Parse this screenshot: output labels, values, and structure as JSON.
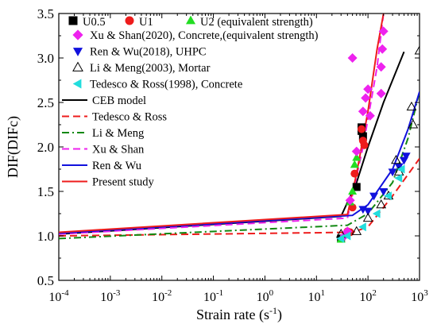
{
  "chart_data": {
    "type": "scatter",
    "xlabel_main": "Strain rate",
    "xlabel_unit_open": "(s",
    "xlabel_unit_exp": "-1",
    "xlabel_unit_close": ")",
    "ylabel": "DIF(DIFc)",
    "x_scale": "log",
    "xlim": [
      0.0001,
      1000
    ],
    "ylim": [
      0.5,
      3.5
    ],
    "x_ticks": [
      {
        "value": 0.0001,
        "base": "10",
        "exp": "-4"
      },
      {
        "value": 0.001,
        "base": "10",
        "exp": "-3"
      },
      {
        "value": 0.01,
        "base": "10",
        "exp": "-2"
      },
      {
        "value": 0.1,
        "base": "10",
        "exp": "-1"
      },
      {
        "value": 1,
        "base": "10",
        "exp": "0"
      },
      {
        "value": 10,
        "base": "10",
        "exp": "1"
      },
      {
        "value": 100,
        "base": "10",
        "exp": "2"
      },
      {
        "value": 1000,
        "base": "10",
        "exp": "3"
      }
    ],
    "y_ticks": [
      "0.5",
      "1.0",
      "1.5",
      "2.0",
      "2.5",
      "3.0",
      "3.5"
    ],
    "grid": false,
    "legend_position": "top-left",
    "legend_top_row": [
      "U0.5",
      "U1",
      "U2  (equivalent strength)"
    ],
    "scatter_series": [
      {
        "name": "U0.5",
        "marker": "square",
        "color": "#000000",
        "points": [
          [
            30,
            0.97
          ],
          [
            60,
            1.55
          ],
          [
            75,
            2.22
          ],
          [
            80,
            2.12
          ],
          [
            75,
            2.18
          ]
        ]
      },
      {
        "name": "U1",
        "marker": "circle",
        "color": "#ee1c1c",
        "points": [
          [
            40,
            1.05
          ],
          [
            45,
            1.04
          ],
          [
            50,
            1.32
          ],
          [
            55,
            1.7
          ],
          [
            75,
            2.2
          ],
          [
            80,
            2.07
          ],
          [
            85,
            2.02
          ]
        ]
      },
      {
        "name": "U2  (equivalent strength)",
        "marker": "triangle-up",
        "color": "#22dd22",
        "points": [
          [
            30,
            0.96
          ],
          [
            45,
            1.38
          ],
          [
            50,
            1.5
          ],
          [
            55,
            1.8
          ],
          [
            60,
            1.88
          ]
        ]
      },
      {
        "name": "Xu & Shan(2020), Concrete,(equivalent strength)",
        "marker": "diamond",
        "color": "#ee22ee",
        "points": [
          [
            35,
            1.0
          ],
          [
            40,
            1.05
          ],
          [
            45,
            1.4
          ],
          [
            50,
            3.0
          ],
          [
            60,
            1.95
          ],
          [
            80,
            2.4
          ],
          [
            90,
            2.55
          ],
          [
            100,
            2.65
          ],
          [
            110,
            2.35
          ],
          [
            180,
            2.9
          ],
          [
            190,
            3.1
          ],
          [
            200,
            3.3
          ],
          [
            180,
            2.6
          ]
        ]
      },
      {
        "name": "Ren & Wu(2018), UHPC",
        "marker": "triangle-down",
        "color": "#1111dd",
        "points": [
          [
            80,
            1.3
          ],
          [
            100,
            1.28
          ],
          [
            130,
            1.45
          ],
          [
            200,
            1.5
          ],
          [
            300,
            1.72
          ],
          [
            400,
            1.78
          ],
          [
            500,
            1.85
          ],
          [
            550,
            1.9
          ]
        ]
      },
      {
        "name": "Li & Meng(2003), Mortar",
        "marker": "triangle-open",
        "color": "#000000",
        "points": [
          [
            30,
            1.02
          ],
          [
            60,
            1.05
          ],
          [
            100,
            1.2
          ],
          [
            180,
            1.35
          ],
          [
            250,
            1.45
          ],
          [
            350,
            1.85
          ],
          [
            400,
            1.72
          ],
          [
            700,
            2.45
          ],
          [
            750,
            2.25
          ],
          [
            1000,
            3.08
          ]
        ]
      },
      {
        "name": "Tedesco & Ross(1998), Concrete",
        "marker": "triangle-left",
        "color": "#22dddd",
        "points": [
          [
            30,
            0.97
          ],
          [
            40,
            1.0
          ],
          [
            80,
            1.1
          ],
          [
            150,
            1.25
          ],
          [
            250,
            1.45
          ],
          [
            400,
            1.65
          ],
          [
            450,
            1.75
          ]
        ]
      }
    ],
    "line_series": [
      {
        "name": "CEB model",
        "color": "#000000",
        "dash": "solid",
        "points": [
          [
            0.0001,
            1.02
          ],
          [
            30,
            1.22
          ],
          [
            60,
            1.6
          ],
          [
            100,
            2.0
          ],
          [
            200,
            2.5
          ],
          [
            500,
            3.07
          ]
        ]
      },
      {
        "name": "Tedesco & Ross",
        "color": "#ee1c1c",
        "dash": "dash",
        "points": [
          [
            0.0001,
            1.0
          ],
          [
            50,
            1.04
          ],
          [
            100,
            1.1
          ],
          [
            300,
            1.45
          ],
          [
            1000,
            1.87
          ]
        ]
      },
      {
        "name": "Li & Meng",
        "color": "#118811",
        "dash": "dashdot",
        "points": [
          [
            0.0001,
            0.97
          ],
          [
            40,
            1.12
          ],
          [
            100,
            1.25
          ],
          [
            300,
            1.6
          ],
          [
            600,
            2.1
          ],
          [
            1000,
            2.62
          ]
        ]
      },
      {
        "name": "Xu & Shan",
        "color": "#ee22ee",
        "dash": "dash",
        "points": [
          [
            0.0001,
            1.02
          ],
          [
            40,
            1.2
          ],
          [
            80,
            2.0
          ],
          [
            150,
            2.9
          ],
          [
            200,
            3.5
          ]
        ]
      },
      {
        "name": "Ren & Wu",
        "color": "#1111dd",
        "dash": "solid",
        "points": [
          [
            0.0001,
            1.03
          ],
          [
            50,
            1.23
          ],
          [
            100,
            1.35
          ],
          [
            300,
            1.75
          ],
          [
            600,
            2.2
          ],
          [
            1000,
            2.62
          ]
        ]
      },
      {
        "name": "Present study",
        "color": "#ee1c1c",
        "dash": "solid",
        "points": [
          [
            0.0001,
            1.04
          ],
          [
            40,
            1.24
          ],
          [
            60,
            1.7
          ],
          [
            100,
            2.4
          ],
          [
            150,
            3.1
          ],
          [
            200,
            3.5
          ]
        ]
      }
    ]
  }
}
